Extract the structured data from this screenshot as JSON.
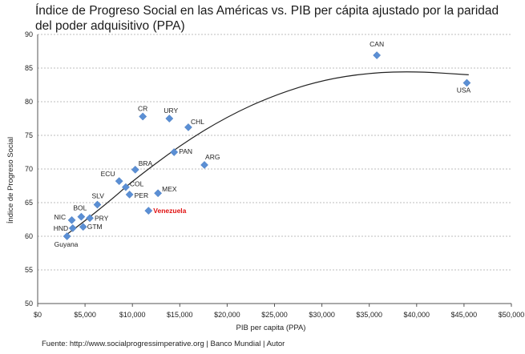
{
  "title": "Índice de Progreso Social en las Américas vs. PIB per cápita ajustado por la paridad del poder adquisitivo (PPA)",
  "source": "Fuente: http://www.socialprogressimperative.org | Banco Mundial |  Autor",
  "chart_data": {
    "type": "scatter",
    "title": "Índice de Progreso Social en las Américas vs. PIB per cápita ajustado por la paridad del poder adquisitivo (PPA)",
    "xlabel": "PIB per capita (PPA)",
    "ylabel": "Índice de Progreso Social",
    "xlim": [
      0,
      50000
    ],
    "ylim": [
      50,
      90
    ],
    "xticks": [
      "$0",
      "$5,000",
      "$10,000",
      "$15,000",
      "$20,000",
      "$25,000",
      "$30,000",
      "$35,000",
      "$40,000",
      "$45,000",
      "$50,000"
    ],
    "yticks": [
      "50",
      "55",
      "60",
      "65",
      "70",
      "75",
      "80",
      "85",
      "90"
    ],
    "grid": "horizontal",
    "marker_color": "#5b8fd4",
    "highlight_color": "#e01010",
    "trendline": "polynomial",
    "points": [
      {
        "label": "CAN",
        "x": 35800,
        "y": 86.9
      },
      {
        "label": "USA",
        "x": 45300,
        "y": 82.8
      },
      {
        "label": "CR",
        "x": 11100,
        "y": 77.8
      },
      {
        "label": "URY",
        "x": 13900,
        "y": 77.5
      },
      {
        "label": "CHL",
        "x": 15900,
        "y": 76.2
      },
      {
        "label": "PAN",
        "x": 14400,
        "y": 72.5
      },
      {
        "label": "ARG",
        "x": 17600,
        "y": 70.6
      },
      {
        "label": "BRA",
        "x": 10300,
        "y": 69.9
      },
      {
        "label": "ECU",
        "x": 8600,
        "y": 68.2
      },
      {
        "label": "COL",
        "x": 9300,
        "y": 67.3
      },
      {
        "label": "PER",
        "x": 9700,
        "y": 66.2
      },
      {
        "label": "MEX",
        "x": 12700,
        "y": 66.4
      },
      {
        "label": "SLV",
        "x": 6300,
        "y": 64.7
      },
      {
        "label": "Venezuela",
        "x": 11700,
        "y": 63.8,
        "highlight": true
      },
      {
        "label": "BOL",
        "x": 4600,
        "y": 62.9
      },
      {
        "label": "PRY",
        "x": 5500,
        "y": 62.7
      },
      {
        "label": "NIC",
        "x": 3600,
        "y": 62.4
      },
      {
        "label": "HND",
        "x": 3700,
        "y": 61.2
      },
      {
        "label": "GTM",
        "x": 4800,
        "y": 61.4
      },
      {
        "label": "Guyana",
        "x": 3100,
        "y": 60.0
      }
    ],
    "trend_curve": [
      {
        "x": 3000,
        "y": 60.2
      },
      {
        "x": 5000,
        "y": 62.3
      },
      {
        "x": 8000,
        "y": 65.7
      },
      {
        "x": 10000,
        "y": 68.2
      },
      {
        "x": 15000,
        "y": 73.5
      },
      {
        "x": 20000,
        "y": 77.8
      },
      {
        "x": 25000,
        "y": 81.0
      },
      {
        "x": 30000,
        "y": 83.2
      },
      {
        "x": 35000,
        "y": 84.3
      },
      {
        "x": 40000,
        "y": 84.5
      },
      {
        "x": 45500,
        "y": 84.0
      }
    ]
  }
}
